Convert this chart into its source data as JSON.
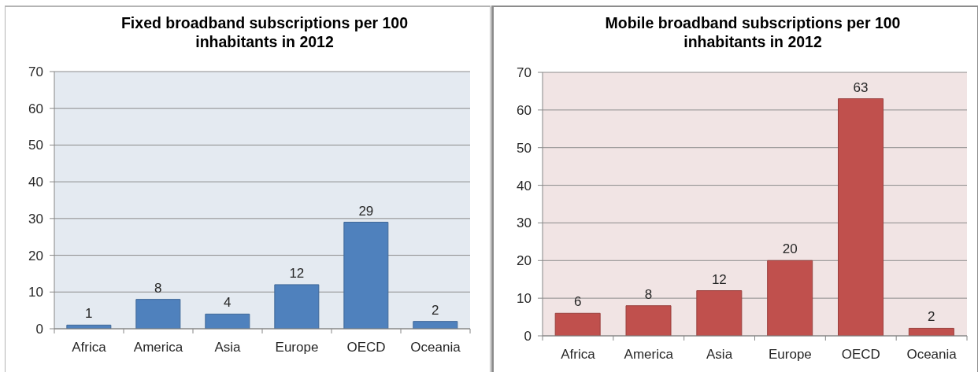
{
  "chart_data": [
    {
      "type": "bar",
      "title": "Fixed broadband subscriptions per 100 inhabitants in 2012",
      "categories": [
        "Africa",
        "America",
        "Asia",
        "Europe",
        "OECD",
        "Oceania"
      ],
      "values": [
        1,
        8,
        4,
        12,
        29,
        2
      ],
      "color": "#4f81bd",
      "ylim": [
        0,
        70
      ],
      "yticks": [
        0,
        10,
        20,
        30,
        40,
        50,
        60,
        70
      ],
      "grid": "y",
      "data_labels": true
    },
    {
      "type": "bar",
      "title": "Mobile broadband subscriptions per 100 inhabitants in 2012",
      "categories": [
        "Africa",
        "America",
        "Asia",
        "Europe",
        "OECD",
        "Oceania"
      ],
      "values": [
        6,
        8,
        12,
        20,
        63,
        2
      ],
      "color": "#c0504d",
      "ylim": [
        0,
        70
      ],
      "yticks": [
        0,
        10,
        20,
        30,
        40,
        50,
        60,
        70
      ],
      "grid": "y",
      "data_labels": true
    }
  ]
}
